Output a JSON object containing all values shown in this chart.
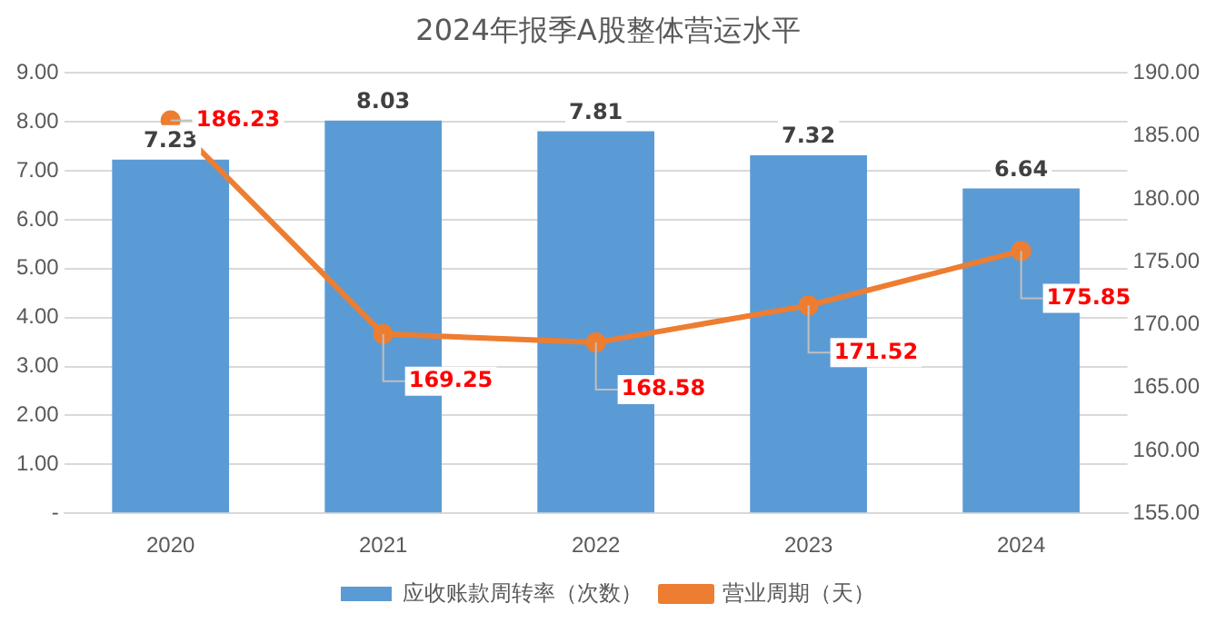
{
  "chart_data": {
    "type": "bar",
    "title": "2024年报季A股整体营运水平",
    "categories": [
      "2020",
      "2021",
      "2022",
      "2023",
      "2024"
    ],
    "series": [
      {
        "name": "应收账款周转率（次数）",
        "color": "#5b9bd5",
        "values": [
          7.23,
          8.03,
          7.81,
          7.32,
          6.64
        ]
      },
      {
        "name": "营业周期（天）",
        "type": "line",
        "axis": "y2",
        "color": "#ed7d31",
        "values": [
          186.23,
          169.25,
          168.58,
          171.52,
          175.85
        ]
      }
    ],
    "ylim": [
      0,
      9
    ],
    "yticks": [
      {
        "value": 0,
        "label": "-"
      },
      {
        "value": 1,
        "label": "1.00"
      },
      {
        "value": 2,
        "label": "2.00"
      },
      {
        "value": 3,
        "label": "3.00"
      },
      {
        "value": 4,
        "label": "4.00"
      },
      {
        "value": 5,
        "label": "5.00"
      },
      {
        "value": 6,
        "label": "6.00"
      },
      {
        "value": 7,
        "label": "7.00"
      },
      {
        "value": 8,
        "label": "8.00"
      },
      {
        "value": 9,
        "label": "9.00"
      }
    ],
    "y2lim": [
      155,
      190
    ],
    "y2ticks": [
      {
        "value": 155,
        "label": "155.00"
      },
      {
        "value": 160,
        "label": "160.00"
      },
      {
        "value": 165,
        "label": "165.00"
      },
      {
        "value": 170,
        "label": "170.00"
      },
      {
        "value": 175,
        "label": "175.00"
      },
      {
        "value": 180,
        "label": "180.00"
      },
      {
        "value": 185,
        "label": "185.00"
      },
      {
        "value": 190,
        "label": "190.00"
      }
    ],
    "grid": "y",
    "legend": "bottom",
    "marker": "circle",
    "line_style": "solid",
    "data_labels": true
  }
}
